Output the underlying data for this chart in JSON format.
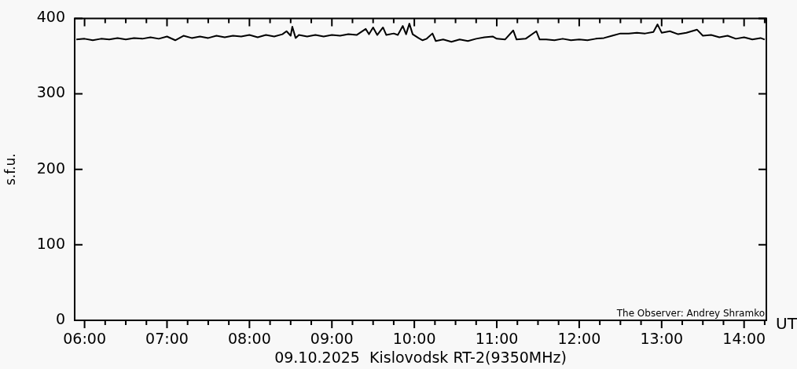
{
  "chart_data": {
    "type": "line",
    "xlabel": "09.10.2025  Kislovodsk RT-2(9350MHz)",
    "ylabel": "s.f.u.",
    "annotations": [
      "The Observer: Andrey Shramko",
      "UT"
    ],
    "x": [
      5.9,
      6.0,
      6.1,
      6.2,
      6.3,
      6.4,
      6.5,
      6.6,
      6.7,
      6.8,
      6.9,
      7.0,
      7.1,
      7.2,
      7.3,
      7.4,
      7.5,
      7.6,
      7.7,
      7.8,
      7.9,
      8.0,
      8.1,
      8.2,
      8.3,
      8.4,
      8.45,
      8.5,
      8.52,
      8.56,
      8.6,
      8.7,
      8.8,
      8.9,
      9.0,
      9.1,
      9.2,
      9.3,
      9.41,
      9.45,
      9.5,
      9.55,
      9.62,
      9.66,
      9.75,
      9.8,
      9.86,
      9.9,
      9.94,
      9.98,
      10.05,
      10.1,
      10.15,
      10.22,
      10.26,
      10.35,
      10.45,
      10.55,
      10.65,
      10.75,
      10.85,
      10.95,
      11.0,
      11.1,
      11.2,
      11.24,
      11.35,
      11.48,
      11.52,
      11.6,
      11.7,
      11.8,
      11.9,
      12.0,
      12.1,
      12.2,
      12.3,
      12.4,
      12.5,
      12.6,
      12.7,
      12.8,
      12.9,
      12.95,
      13.0,
      13.1,
      13.2,
      13.3,
      13.43,
      13.5,
      13.6,
      13.7,
      13.8,
      13.9,
      14.0,
      14.1,
      14.2,
      14.25
    ],
    "series": [
      {
        "color": "#000000",
        "values": [
          372,
          373,
          371,
          373,
          372,
          374,
          372,
          374,
          373,
          375,
          373,
          376,
          371,
          377,
          374,
          376,
          374,
          377,
          375,
          377,
          376,
          378,
          375,
          378,
          376,
          379,
          383,
          377,
          389,
          374,
          378,
          376,
          378,
          376,
          378,
          377,
          379,
          378,
          386,
          379,
          388,
          378,
          388,
          378,
          380,
          378,
          390,
          379,
          393,
          379,
          374,
          371,
          373,
          380,
          370,
          372,
          369,
          372,
          370,
          373,
          375,
          376,
          373,
          372,
          384,
          372,
          373,
          383,
          372,
          372,
          371,
          373,
          371,
          372,
          371,
          373,
          374,
          377,
          380,
          380,
          381,
          380,
          382,
          392,
          381,
          383,
          379,
          381,
          385,
          377,
          378,
          375,
          377,
          373,
          375,
          372,
          374,
          372
        ]
      }
    ],
    "xlim": [
      5.88,
      14.27
    ],
    "xticks": [
      {
        "value": 6,
        "label": "06:00"
      },
      {
        "value": 6.25,
        "label": null
      },
      {
        "value": 6.5,
        "label": null
      },
      {
        "value": 6.75,
        "label": null
      },
      {
        "value": 7,
        "label": "07:00"
      },
      {
        "value": 7.25,
        "label": null
      },
      {
        "value": 7.5,
        "label": null
      },
      {
        "value": 7.75,
        "label": null
      },
      {
        "value": 8,
        "label": "08:00"
      },
      {
        "value": 8.25,
        "label": null
      },
      {
        "value": 8.5,
        "label": null
      },
      {
        "value": 8.75,
        "label": null
      },
      {
        "value": 9,
        "label": "09:00"
      },
      {
        "value": 9.25,
        "label": null
      },
      {
        "value": 9.5,
        "label": null
      },
      {
        "value": 9.75,
        "label": null
      },
      {
        "value": 10,
        "label": "10:00"
      },
      {
        "value": 10.25,
        "label": null
      },
      {
        "value": 10.5,
        "label": null
      },
      {
        "value": 10.75,
        "label": null
      },
      {
        "value": 11,
        "label": "11:00"
      },
      {
        "value": 11.25,
        "label": null
      },
      {
        "value": 11.5,
        "label": null
      },
      {
        "value": 11.75,
        "label": null
      },
      {
        "value": 12,
        "label": "12:00"
      },
      {
        "value": 12.25,
        "label": null
      },
      {
        "value": 12.5,
        "label": null
      },
      {
        "value": 12.75,
        "label": null
      },
      {
        "value": 13,
        "label": "13:00"
      },
      {
        "value": 13.25,
        "label": null
      },
      {
        "value": 13.5,
        "label": null
      },
      {
        "value": 13.75,
        "label": null
      },
      {
        "value": 14,
        "label": "14:00"
      },
      {
        "value": 14.25,
        "label": null
      }
    ],
    "ylim": [
      0,
      400
    ],
    "yticks": [
      0,
      100,
      200,
      300,
      400
    ],
    "grid": false,
    "legend": false,
    "marker": "none",
    "line_style": "solid"
  }
}
